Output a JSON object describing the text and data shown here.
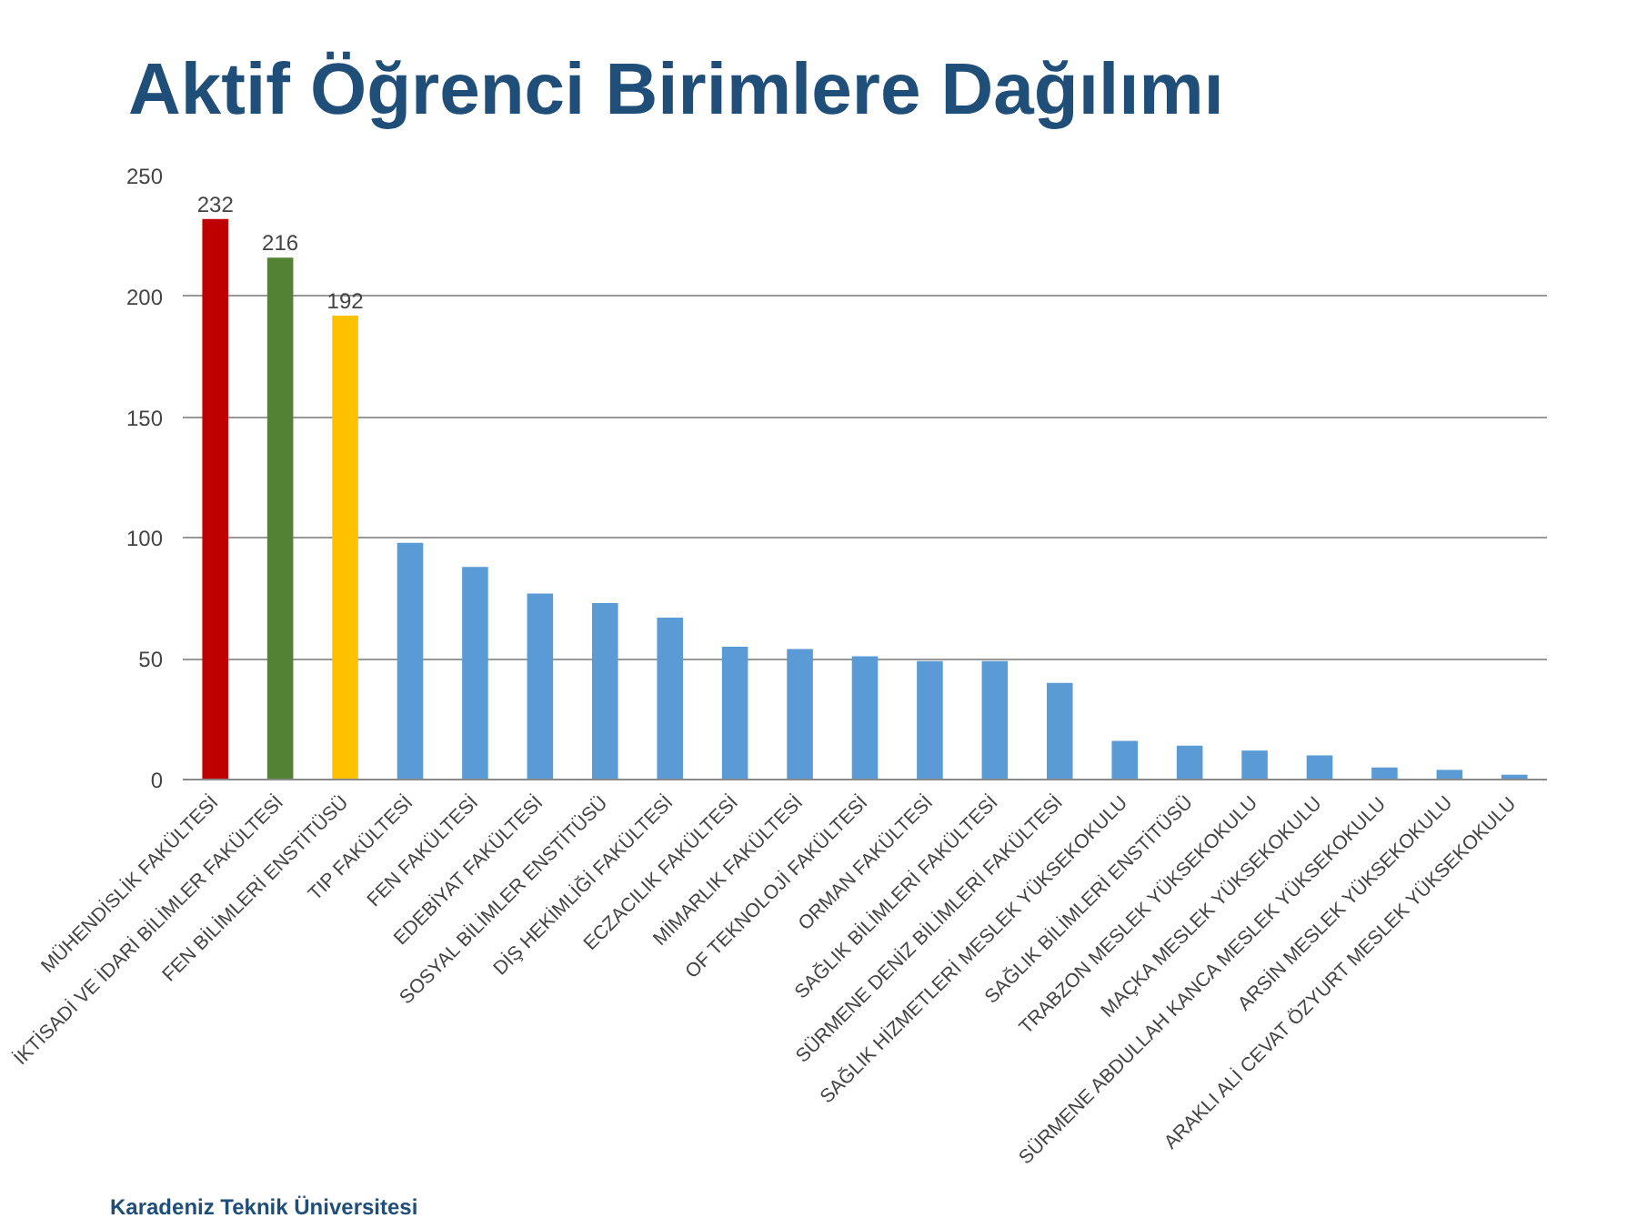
{
  "chart_data": {
    "type": "bar",
    "title": "Aktif Öğrenci Birimlere Dağılımı",
    "categories": [
      "MÜHENDİSLİK FAKÜLTESİ",
      "İKTİSADİ VE İDARİ BİLİMLER FAKÜLTESİ",
      "FEN BİLİMLERİ ENSTİTÜSÜ",
      "TIP FAKÜLTESİ",
      "FEN FAKÜLTESİ",
      "EDEBİYAT FAKÜLTESİ",
      "SOSYAL BİLİMLER ENSTİTÜSÜ",
      "DİŞ HEKİMLİĞİ FAKÜLTESİ",
      "ECZACILIK FAKÜLTESİ",
      "MİMARLIK FAKÜLTESİ",
      "OF TEKNOLOJİ FAKÜLTESİ",
      "ORMAN FAKÜLTESİ",
      "SAĞLIK BİLİMLERİ FAKÜLTESİ",
      "SÜRMENE DENİZ BİLİMLERİ FAKÜLTESİ",
      "SAĞLIK HİZMETLERİ MESLEK YÜKSEKOKULU",
      "SAĞLIK BİLİMLERİ ENSTİTÜSÜ",
      "TRABZON MESLEK YÜKSEKOKULU",
      "MAÇKA MESLEK YÜKSEKOKULU",
      "SÜRMENE ABDULLAH KANCA MESLEK YÜKSEKOKULU",
      "ARSİN MESLEK YÜKSEKOKULU",
      "ARAKLI ALİ CEVAT ÖZYURT MESLEK YÜKSEKOKULU"
    ],
    "values": [
      232,
      216,
      192,
      98,
      88,
      77,
      73,
      67,
      55,
      54,
      51,
      49,
      49,
      40,
      16,
      14,
      12,
      10,
      5,
      4,
      2
    ],
    "value_labels": [
      "232",
      "216",
      "192",
      null,
      null,
      null,
      null,
      null,
      null,
      null,
      null,
      null,
      null,
      null,
      null,
      null,
      null,
      null,
      null,
      null,
      null
    ],
    "colors": [
      "#c00000",
      "#548235",
      "#ffc000",
      "#5b9bd5",
      "#5b9bd5",
      "#5b9bd5",
      "#5b9bd5",
      "#5b9bd5",
      "#5b9bd5",
      "#5b9bd5",
      "#5b9bd5",
      "#5b9bd5",
      "#5b9bd5",
      "#5b9bd5",
      "#5b9bd5",
      "#5b9bd5",
      "#5b9bd5",
      "#5b9bd5",
      "#5b9bd5",
      "#5b9bd5",
      "#5b9bd5"
    ],
    "ylim": [
      0,
      250
    ],
    "yticks": [
      0,
      50,
      100,
      150,
      200,
      250
    ],
    "grid": "y",
    "annotations": [
      "Karadeniz Teknik Üniversitesi"
    ]
  }
}
